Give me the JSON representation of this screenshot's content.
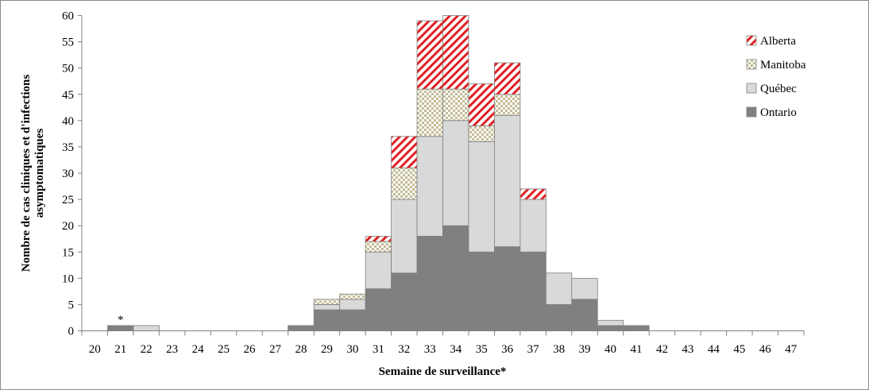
{
  "chart_data": {
    "type": "bar",
    "stacked": true,
    "xlabel": "Semaine de surveillance*",
    "ylabel": "Nombre de cas cliniques et d'infections asymptomatiques",
    "ylim": [
      0,
      60
    ],
    "y_ticks": [
      0,
      5,
      10,
      15,
      20,
      25,
      30,
      35,
      40,
      45,
      50,
      55,
      60
    ],
    "grid": false,
    "legend_position": "top-right",
    "categories": [
      "20",
      "21",
      "22",
      "23",
      "24",
      "25",
      "26",
      "27",
      "28",
      "29",
      "30",
      "31",
      "32",
      "33",
      "34",
      "35",
      "36",
      "37",
      "38",
      "39",
      "40",
      "41",
      "42",
      "43",
      "44",
      "45",
      "46",
      "47"
    ],
    "series": [
      {
        "name": "Ontario",
        "color": "#808080",
        "pattern": "solid",
        "values": [
          0,
          1,
          0,
          0,
          0,
          0,
          0,
          0,
          1,
          4,
          4,
          8,
          11,
          18,
          20,
          15,
          16,
          15,
          5,
          6,
          1,
          1,
          0,
          0,
          0,
          0,
          0,
          0
        ]
      },
      {
        "name": "Québec",
        "color": "#d9d9d9",
        "pattern": "solid",
        "values": [
          0,
          0,
          1,
          0,
          0,
          0,
          0,
          0,
          0,
          1,
          2,
          7,
          14,
          19,
          20,
          21,
          25,
          10,
          6,
          4,
          1,
          0,
          0,
          0,
          0,
          0,
          0,
          0
        ]
      },
      {
        "name": "Manitoba",
        "color": "#c4bd97",
        "pattern": "checker",
        "values": [
          0,
          0,
          0,
          0,
          0,
          0,
          0,
          0,
          0,
          1,
          1,
          2,
          6,
          9,
          6,
          3,
          4,
          0,
          0,
          0,
          0,
          0,
          0,
          0,
          0,
          0,
          0,
          0
        ]
      },
      {
        "name": "Alberta",
        "color": "#e02020",
        "pattern": "diagonal",
        "values": [
          0,
          0,
          0,
          0,
          0,
          0,
          0,
          0,
          0,
          0,
          0,
          1,
          6,
          13,
          14,
          8,
          6,
          2,
          0,
          0,
          0,
          0,
          0,
          0,
          0,
          0,
          0,
          0
        ]
      }
    ],
    "annotations": [
      {
        "category": "21",
        "text": "*"
      }
    ]
  }
}
